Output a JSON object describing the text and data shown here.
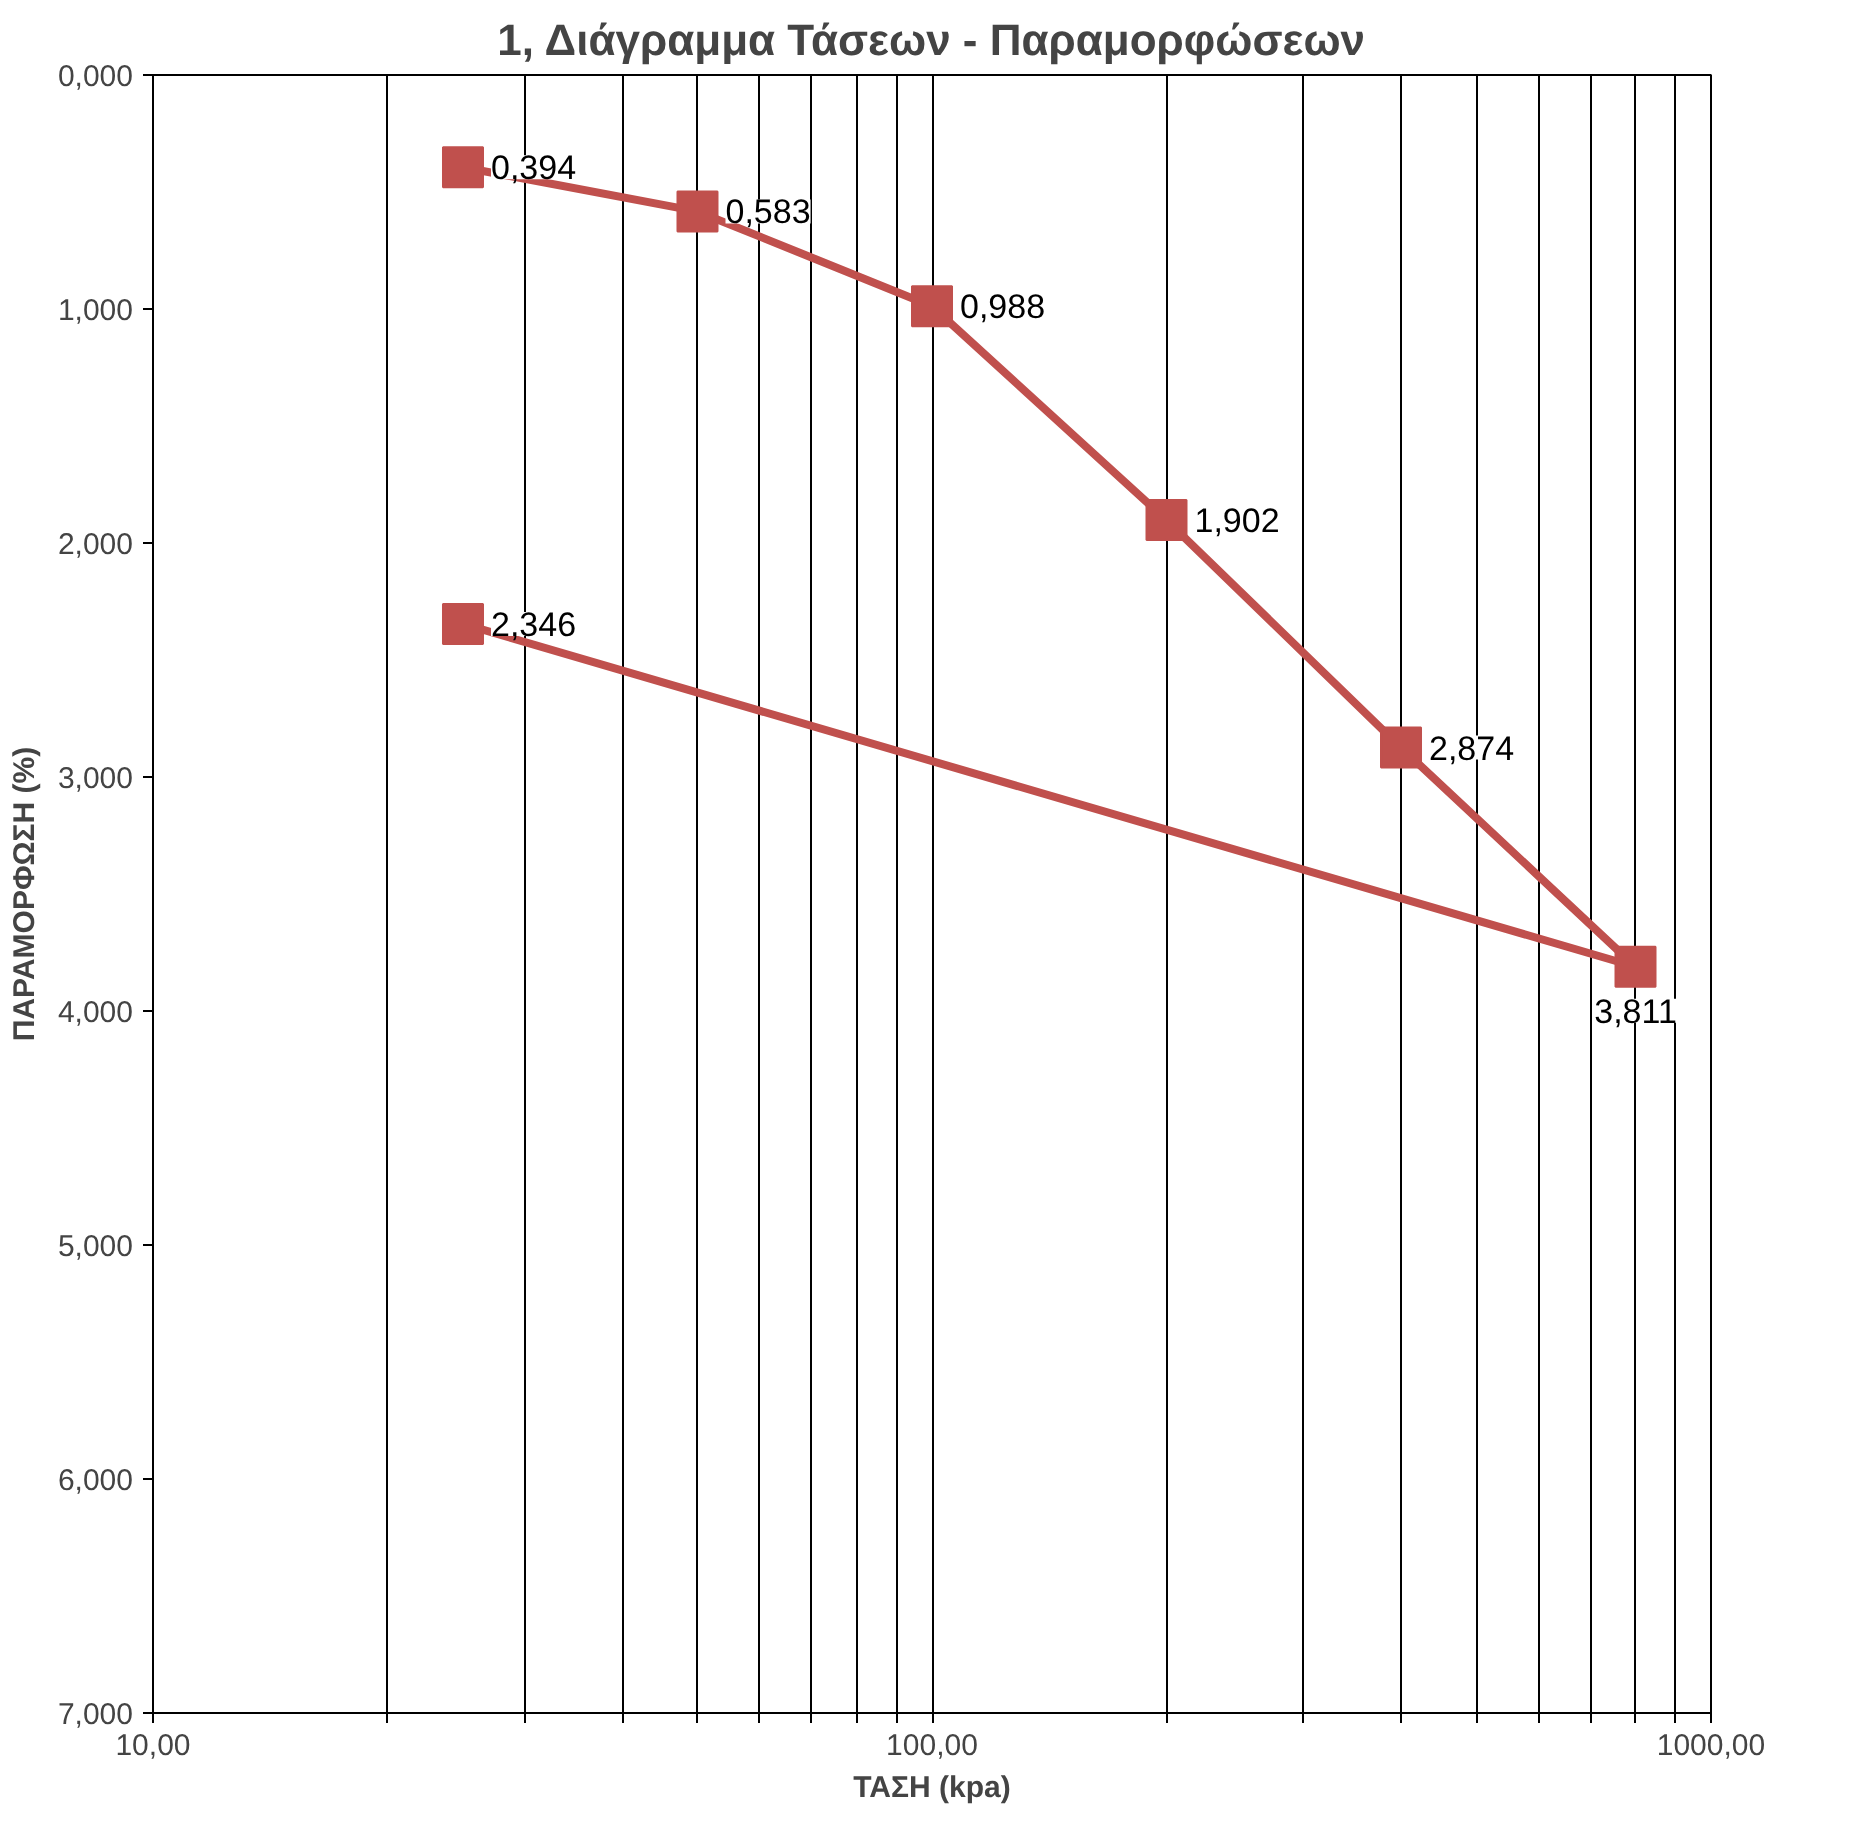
{
  "chart_data": {
    "type": "line",
    "title": "1, Διάγραμμα Τάσεων - Παραμορφώσεων",
    "xlabel": "ΤΑΣΗ (kpa)",
    "ylabel": "ΠΑΡΑΜΟΡΦΩΣΗ (%)",
    "log": "x",
    "x": [
      25,
      50,
      100,
      200,
      400,
      800,
      25
    ],
    "series": [
      {
        "color": "#c0504d",
        "values": [
          0.394,
          0.583,
          0.988,
          1.902,
          2.874,
          3.811,
          2.346
        ],
        "value_labels": [
          "0,394",
          "0,583",
          "0,988",
          "1,902",
          "2,874",
          "3,811",
          "2,346"
        ]
      }
    ],
    "xlim": [
      10,
      1000
    ],
    "ylim": [
      7,
      0
    ],
    "xticks": [
      {
        "value": 10,
        "label": "10,00"
      },
      {
        "value": 20,
        "label": null
      },
      {
        "value": 30,
        "label": null
      },
      {
        "value": 40,
        "label": null
      },
      {
        "value": 50,
        "label": null
      },
      {
        "value": 60,
        "label": null
      },
      {
        "value": 70,
        "label": null
      },
      {
        "value": 80,
        "label": null
      },
      {
        "value": 90,
        "label": null
      },
      {
        "value": 100,
        "label": "100,00"
      },
      {
        "value": 200,
        "label": null
      },
      {
        "value": 300,
        "label": null
      },
      {
        "value": 400,
        "label": null
      },
      {
        "value": 500,
        "label": null
      },
      {
        "value": 600,
        "label": null
      },
      {
        "value": 700,
        "label": null
      },
      {
        "value": 800,
        "label": null
      },
      {
        "value": 900,
        "label": null
      },
      {
        "value": 1000,
        "label": "1000,00"
      }
    ],
    "yticks": [
      {
        "value": 0,
        "label": "0,000"
      },
      {
        "value": 1,
        "label": "1,000"
      },
      {
        "value": 2,
        "label": "2,000"
      },
      {
        "value": 3,
        "label": "3,000"
      },
      {
        "value": 4,
        "label": "4,000"
      },
      {
        "value": 5,
        "label": "5,000"
      },
      {
        "value": 6,
        "label": "6,000"
      },
      {
        "value": 7,
        "label": "7,000"
      }
    ],
    "grid": "x",
    "marker": "square",
    "line_style": "solid"
  }
}
